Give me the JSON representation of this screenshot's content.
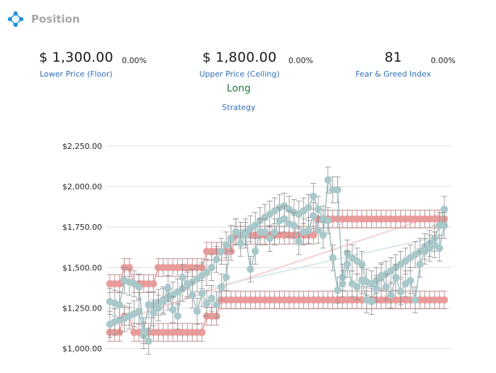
{
  "header": {
    "title": "Position",
    "icon": "network-nodes-icon"
  },
  "metrics": {
    "floor": {
      "value": "$ 1,300.00",
      "change": "0.00%",
      "label": "Lower Price (Floor)"
    },
    "ceiling": {
      "value": "$ 1,800.00",
      "change": "0.00%",
      "label": "Upper Price (Ceiling)"
    },
    "fear_greed": {
      "value": "81",
      "change": "0.00%",
      "label": "Fear & Greed Index"
    }
  },
  "strategy": {
    "value": "Long",
    "label": "Strategy"
  },
  "colors": {
    "price": "#a9c8ca",
    "price_line": "#9cbdc0",
    "band": "#e99a9a",
    "band_err": "#b07a7a",
    "link": "#2f6fb9",
    "long": "#1e7a3c"
  },
  "chart_data": {
    "type": "line",
    "title": "",
    "xlabel": "",
    "ylabel": "",
    "y_ticks": [
      "$2,250.00",
      "$2,000.00",
      "$1,750.00",
      "$1,500.00",
      "$1,250.00",
      "$1,000.00"
    ],
    "ylim": [
      1000,
      2250
    ],
    "grid": true,
    "series": [
      {
        "values": [
          1150,
          1165,
          1175,
          1185,
          1200,
          1215,
          1230,
          1080,
          1045,
          1270,
          1285,
          1300,
          1315,
          1330,
          1350,
          1370,
          1390,
          1410,
          1430,
          1450,
          1470,
          1500,
          1550,
          1600,
          1640,
          1680,
          1720,
          1700,
          1720,
          1740,
          1760,
          1790,
          1810,
          1830,
          1850,
          1870,
          1880,
          1860,
          1840,
          1830,
          1850,
          1870,
          1940,
          1860,
          1800,
          1790,
          1560,
          1360,
          1440,
          1590,
          1560,
          1540,
          1520,
          1410,
          1400,
          1420,
          1440,
          1460,
          1480,
          1500,
          1520,
          1540,
          1560,
          1580,
          1600,
          1630,
          1650,
          1680,
          1760,
          1860
        ]
      },
      {
        "values": [
          1290,
          1280,
          1270,
          1420,
          1410,
          1400,
          1380,
          1110,
          1270,
          1220,
          1250,
          1290,
          1370,
          1240,
          1200,
          1440,
          1400,
          1330,
          1230,
          1340,
          1280,
          1310,
          1270,
          1380,
          1440,
          1680,
          1720,
          1650,
          1700,
          1490,
          1600,
          1720,
          1720,
          1680,
          1720,
          1790,
          1800,
          1770,
          1760,
          1660,
          1720,
          1730,
          1820,
          1730,
          1700,
          2040,
          1980,
          1980,
          1400,
          1520,
          1400,
          1380,
          1420,
          1300,
          1290,
          1370,
          1450,
          1380,
          1330,
          1440,
          1350,
          1400,
          1420,
          1300,
          1520,
          1600,
          1620,
          1640,
          1620,
          1760
        ]
      },
      {
        "values": [
          1400,
          1400,
          1400,
          1500,
          1500,
          1400,
          1400,
          1400,
          1400,
          1400,
          1500,
          1500,
          1500,
          1500,
          1500,
          1500,
          1500,
          1500,
          1500,
          1500,
          1600,
          1600,
          1600,
          1600,
          1600,
          1600,
          1700,
          1700,
          1700,
          1700,
          1700,
          1700,
          1700,
          1700,
          1700,
          1700,
          1700,
          1700,
          1700,
          1700,
          1700,
          1700,
          1700,
          1800,
          1800,
          1800,
          1800,
          1800,
          1800,
          1800,
          1800,
          1800,
          1800,
          1800,
          1800,
          1800,
          1800,
          1800,
          1800,
          1800,
          1800,
          1800,
          1800,
          1800,
          1800,
          1800,
          1800,
          1800,
          1800,
          1800
        ]
      },
      {
        "values": [
          1100,
          1100,
          1100,
          1200,
          1200,
          1100,
          1100,
          1100,
          1100,
          1100,
          1100,
          1100,
          1100,
          1100,
          1100,
          1100,
          1100,
          1100,
          1100,
          1100,
          1200,
          1200,
          1200,
          1300,
          1300,
          1300,
          1300,
          1300,
          1300,
          1300,
          1300,
          1300,
          1300,
          1300,
          1300,
          1300,
          1300,
          1300,
          1300,
          1300,
          1300,
          1300,
          1300,
          1300,
          1300,
          1300,
          1300,
          1300,
          1300,
          1300,
          1300,
          1300,
          1300,
          1300,
          1300,
          1300,
          1300,
          1300,
          1300,
          1300,
          1300,
          1300,
          1300,
          1300,
          1300,
          1300,
          1300,
          1300,
          1300,
          1300
        ]
      }
    ]
  }
}
